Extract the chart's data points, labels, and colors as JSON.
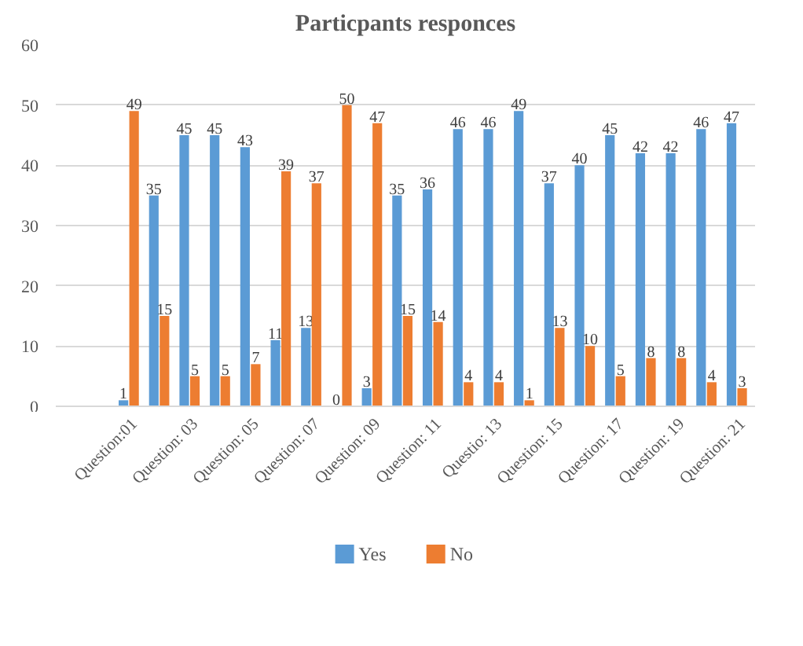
{
  "chart_data": {
    "type": "bar",
    "title": "Particpants responces",
    "categories": [
      "Question:01",
      null,
      "Question: 03",
      null,
      "Question: 05",
      null,
      "Question: 07",
      null,
      "Question: 09",
      null,
      "Question: 11",
      null,
      "Questio: 13",
      null,
      "Question: 15",
      null,
      "Question: 17",
      null,
      "Question: 19",
      null,
      "Question: 21"
    ],
    "series": [
      {
        "name": "Yes",
        "color": "#5b9bd5",
        "values": [
          1,
          35,
          45,
          45,
          43,
          11,
          13,
          0,
          3,
          35,
          36,
          46,
          46,
          49,
          37,
          40,
          45,
          42,
          42,
          46,
          47
        ]
      },
      {
        "name": "No",
        "color": "#ed7d31",
        "values": [
          49,
          15,
          5,
          5,
          7,
          39,
          37,
          50,
          47,
          15,
          14,
          4,
          4,
          1,
          13,
          10,
          5,
          8,
          8,
          4,
          3
        ]
      }
    ],
    "ylim": [
      0,
      60
    ],
    "yticks": [
      0,
      10,
      20,
      30,
      40,
      50,
      60
    ],
    "grid": "y",
    "legend": "bottom",
    "data_labels": true
  }
}
